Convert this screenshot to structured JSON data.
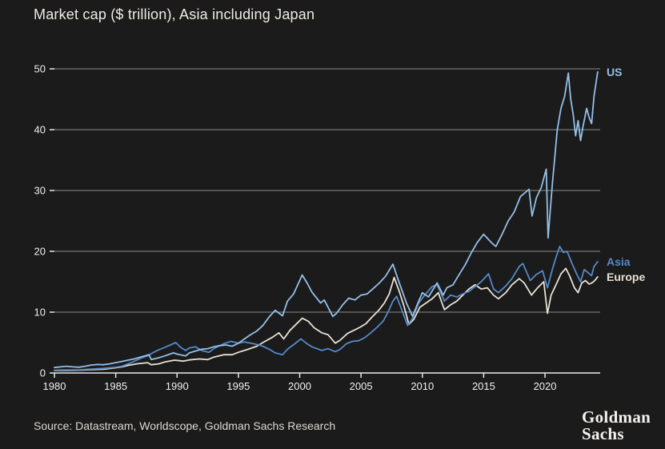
{
  "header": {
    "title": "Market cap ($ trillion), Asia including Japan"
  },
  "footer": {
    "source": "Source: Datastream, Worldscope, Goldman Sachs Research",
    "logo_line1": "Goldman",
    "logo_line2": "Sachs"
  },
  "chart_data": {
    "type": "line",
    "title": "Market cap ($ trillion), Asia including Japan",
    "xlabel": "",
    "ylabel": "Market cap ($ trillion)",
    "xlim": [
      1980,
      2024.5
    ],
    "ylim": [
      0,
      50
    ],
    "xticks": [
      1980,
      1985,
      1990,
      1995,
      2000,
      2005,
      2010,
      2015,
      2020
    ],
    "yticks": [
      0,
      10,
      20,
      30,
      40,
      50
    ],
    "grid": "horizontal",
    "legend_position": "right-end-labels",
    "background": "#1b1b1b",
    "series": [
      {
        "name": "Europe",
        "color": "#e8e1d4",
        "points": [
          [
            1980,
            0.4
          ],
          [
            1981,
            0.42
          ],
          [
            1982,
            0.45
          ],
          [
            1983,
            0.55
          ],
          [
            1984,
            0.62
          ],
          [
            1985,
            0.85
          ],
          [
            1985.5,
            1.0
          ],
          [
            1986,
            1.25
          ],
          [
            1986.7,
            1.5
          ],
          [
            1987.6,
            1.7
          ],
          [
            1987.9,
            1.35
          ],
          [
            1988.5,
            1.5
          ],
          [
            1989,
            1.8
          ],
          [
            1989.8,
            2.1
          ],
          [
            1990.5,
            1.95
          ],
          [
            1991,
            2.15
          ],
          [
            1991.8,
            2.3
          ],
          [
            1992.5,
            2.2
          ],
          [
            1993,
            2.6
          ],
          [
            1993.8,
            3.0
          ],
          [
            1994.5,
            3.0
          ],
          [
            1995,
            3.4
          ],
          [
            1995.8,
            3.9
          ],
          [
            1996.5,
            4.4
          ],
          [
            1997,
            5.0
          ],
          [
            1997.8,
            5.9
          ],
          [
            1998.3,
            6.6
          ],
          [
            1998.7,
            5.6
          ],
          [
            1999.2,
            7.0
          ],
          [
            1999.8,
            8.2
          ],
          [
            2000.2,
            9.0
          ],
          [
            2000.7,
            8.5
          ],
          [
            2001.2,
            7.4
          ],
          [
            2001.8,
            6.6
          ],
          [
            2002.3,
            6.3
          ],
          [
            2002.9,
            4.9
          ],
          [
            2003.3,
            5.4
          ],
          [
            2003.9,
            6.5
          ],
          [
            2004.4,
            7.0
          ],
          [
            2004.9,
            7.5
          ],
          [
            2005.4,
            8.1
          ],
          [
            2005.9,
            9.2
          ],
          [
            2006.4,
            10.2
          ],
          [
            2006.9,
            11.5
          ],
          [
            2007.3,
            13.0
          ],
          [
            2007.7,
            15.7
          ],
          [
            2008.1,
            13.5
          ],
          [
            2008.5,
            11.0
          ],
          [
            2008.9,
            8.0
          ],
          [
            2009.3,
            8.8
          ],
          [
            2009.8,
            10.8
          ],
          [
            2010.3,
            11.5
          ],
          [
            2010.8,
            12.2
          ],
          [
            2011.3,
            13.2
          ],
          [
            2011.8,
            10.4
          ],
          [
            2012.3,
            11.2
          ],
          [
            2012.8,
            11.8
          ],
          [
            2013.3,
            12.8
          ],
          [
            2013.8,
            13.8
          ],
          [
            2014.3,
            14.5
          ],
          [
            2014.8,
            13.8
          ],
          [
            2015.3,
            14.0
          ],
          [
            2015.8,
            12.8
          ],
          [
            2016.2,
            12.2
          ],
          [
            2016.8,
            13.2
          ],
          [
            2017.3,
            14.5
          ],
          [
            2017.9,
            15.5
          ],
          [
            2018.3,
            14.8
          ],
          [
            2018.9,
            12.8
          ],
          [
            2019.4,
            14.0
          ],
          [
            2019.9,
            15.0
          ],
          [
            2020.2,
            9.8
          ],
          [
            2020.5,
            12.8
          ],
          [
            2020.9,
            14.5
          ],
          [
            2021.3,
            16.3
          ],
          [
            2021.7,
            17.2
          ],
          [
            2022.0,
            16.0
          ],
          [
            2022.4,
            14.0
          ],
          [
            2022.7,
            13.2
          ],
          [
            2023.0,
            14.8
          ],
          [
            2023.3,
            15.2
          ],
          [
            2023.6,
            14.6
          ],
          [
            2023.9,
            14.9
          ],
          [
            2024.1,
            15.3
          ],
          [
            2024.3,
            15.8
          ]
        ]
      },
      {
        "name": "Asia",
        "color": "#5589c8",
        "points": [
          [
            1980,
            0.45
          ],
          [
            1981,
            0.5
          ],
          [
            1982,
            0.5
          ],
          [
            1983,
            0.65
          ],
          [
            1984,
            0.75
          ],
          [
            1985,
            0.95
          ],
          [
            1985.5,
            1.1
          ],
          [
            1986,
            1.5
          ],
          [
            1986.5,
            1.9
          ],
          [
            1987,
            2.4
          ],
          [
            1987.7,
            2.9
          ],
          [
            1988,
            3.3
          ],
          [
            1988.5,
            3.8
          ],
          [
            1989,
            4.2
          ],
          [
            1989.9,
            5.0
          ],
          [
            1990.3,
            4.2
          ],
          [
            1990.7,
            3.7
          ],
          [
            1991,
            4.1
          ],
          [
            1991.5,
            4.3
          ],
          [
            1992,
            3.7
          ],
          [
            1992.6,
            3.4
          ],
          [
            1993,
            4.0
          ],
          [
            1993.8,
            4.8
          ],
          [
            1994.4,
            5.2
          ],
          [
            1995,
            4.9
          ],
          [
            1995.5,
            5.1
          ],
          [
            1996,
            4.9
          ],
          [
            1996.7,
            4.6
          ],
          [
            1997,
            4.4
          ],
          [
            1997.6,
            3.8
          ],
          [
            1998,
            3.3
          ],
          [
            1998.6,
            3.0
          ],
          [
            1999,
            3.9
          ],
          [
            1999.6,
            4.8
          ],
          [
            2000.1,
            5.6
          ],
          [
            2000.6,
            4.8
          ],
          [
            2001,
            4.3
          ],
          [
            2001.8,
            3.7
          ],
          [
            2002.3,
            4.0
          ],
          [
            2002.9,
            3.5
          ],
          [
            2003.3,
            3.9
          ],
          [
            2003.8,
            4.8
          ],
          [
            2004.3,
            5.2
          ],
          [
            2004.8,
            5.3
          ],
          [
            2005.3,
            5.8
          ],
          [
            2005.8,
            6.6
          ],
          [
            2006.3,
            7.5
          ],
          [
            2006.8,
            8.5
          ],
          [
            2007.2,
            10.0
          ],
          [
            2007.6,
            11.8
          ],
          [
            2007.9,
            12.6
          ],
          [
            2008.3,
            10.5
          ],
          [
            2008.8,
            7.8
          ],
          [
            2009.2,
            9.0
          ],
          [
            2009.7,
            11.5
          ],
          [
            2010.2,
            12.8
          ],
          [
            2010.8,
            14.2
          ],
          [
            2011.2,
            14.5
          ],
          [
            2011.8,
            11.8
          ],
          [
            2012.3,
            12.8
          ],
          [
            2012.8,
            12.5
          ],
          [
            2013.3,
            13.0
          ],
          [
            2013.8,
            13.4
          ],
          [
            2014.3,
            14.2
          ],
          [
            2014.8,
            15.0
          ],
          [
            2015.4,
            16.3
          ],
          [
            2015.8,
            13.8
          ],
          [
            2016.2,
            13.2
          ],
          [
            2016.8,
            14.3
          ],
          [
            2017.3,
            15.5
          ],
          [
            2017.9,
            17.5
          ],
          [
            2018.2,
            18.0
          ],
          [
            2018.8,
            15.2
          ],
          [
            2019.3,
            16.2
          ],
          [
            2019.8,
            16.8
          ],
          [
            2020.2,
            14.0
          ],
          [
            2020.6,
            17.0
          ],
          [
            2020.9,
            19.0
          ],
          [
            2021.2,
            20.8
          ],
          [
            2021.5,
            19.8
          ],
          [
            2021.8,
            20.0
          ],
          [
            2022.2,
            18.0
          ],
          [
            2022.6,
            16.2
          ],
          [
            2022.9,
            15.0
          ],
          [
            2023.2,
            17.0
          ],
          [
            2023.5,
            16.5
          ],
          [
            2023.8,
            16.0
          ],
          [
            2024,
            17.5
          ],
          [
            2024.3,
            18.3
          ]
        ]
      },
      {
        "name": "US",
        "color": "#93bfe8",
        "points": [
          [
            1980,
            0.9
          ],
          [
            1980.5,
            1.0
          ],
          [
            1981,
            1.1
          ],
          [
            1981.5,
            1.0
          ],
          [
            1982,
            0.95
          ],
          [
            1982.5,
            1.1
          ],
          [
            1983,
            1.3
          ],
          [
            1983.5,
            1.4
          ],
          [
            1984,
            1.35
          ],
          [
            1984.5,
            1.5
          ],
          [
            1985,
            1.7
          ],
          [
            1985.5,
            1.9
          ],
          [
            1986,
            2.1
          ],
          [
            1986.5,
            2.3
          ],
          [
            1987,
            2.6
          ],
          [
            1987.7,
            3.0
          ],
          [
            1987.9,
            2.2
          ],
          [
            1988.5,
            2.5
          ],
          [
            1989,
            2.8
          ],
          [
            1989.7,
            3.3
          ],
          [
            1990,
            3.1
          ],
          [
            1990.7,
            2.8
          ],
          [
            1991,
            3.3
          ],
          [
            1991.5,
            3.6
          ],
          [
            1992,
            3.9
          ],
          [
            1992.5,
            4.0
          ],
          [
            1993,
            4.3
          ],
          [
            1993.5,
            4.5
          ],
          [
            1994,
            4.6
          ],
          [
            1994.5,
            4.4
          ],
          [
            1995,
            4.9
          ],
          [
            1995.5,
            5.6
          ],
          [
            1996,
            6.3
          ],
          [
            1996.5,
            6.9
          ],
          [
            1997,
            7.8
          ],
          [
            1997.5,
            9.2
          ],
          [
            1998,
            10.3
          ],
          [
            1998.6,
            9.4
          ],
          [
            1999,
            11.8
          ],
          [
            1999.5,
            13.0
          ],
          [
            2000,
            15.2
          ],
          [
            2000.2,
            16.1
          ],
          [
            2000.6,
            14.8
          ],
          [
            2001,
            13.3
          ],
          [
            2001.7,
            11.5
          ],
          [
            2002,
            12.0
          ],
          [
            2002.7,
            9.3
          ],
          [
            2003,
            9.8
          ],
          [
            2003.5,
            11.2
          ],
          [
            2004,
            12.3
          ],
          [
            2004.5,
            12.0
          ],
          [
            2005,
            12.8
          ],
          [
            2005.5,
            13.0
          ],
          [
            2006,
            13.9
          ],
          [
            2006.5,
            14.8
          ],
          [
            2007,
            15.9
          ],
          [
            2007.6,
            17.9
          ],
          [
            2008,
            15.5
          ],
          [
            2008.7,
            11.5
          ],
          [
            2009.2,
            9.3
          ],
          [
            2009.7,
            11.8
          ],
          [
            2010,
            13.2
          ],
          [
            2010.5,
            12.5
          ],
          [
            2011.2,
            14.8
          ],
          [
            2011.7,
            12.8
          ],
          [
            2012,
            14.0
          ],
          [
            2012.5,
            14.5
          ],
          [
            2013,
            16.2
          ],
          [
            2013.5,
            17.8
          ],
          [
            2014,
            19.8
          ],
          [
            2014.5,
            21.5
          ],
          [
            2015,
            22.8
          ],
          [
            2015.7,
            21.3
          ],
          [
            2016,
            20.8
          ],
          [
            2016.5,
            22.8
          ],
          [
            2017,
            25.0
          ],
          [
            2017.5,
            26.5
          ],
          [
            2018,
            29.0
          ],
          [
            2018.7,
            30.2
          ],
          [
            2018.95,
            25.8
          ],
          [
            2019.3,
            28.8
          ],
          [
            2019.7,
            30.5
          ],
          [
            2020.1,
            33.5
          ],
          [
            2020.25,
            22.2
          ],
          [
            2020.6,
            31.0
          ],
          [
            2021,
            40.0
          ],
          [
            2021.3,
            43.5
          ],
          [
            2021.6,
            45.5
          ],
          [
            2021.9,
            49.3
          ],
          [
            2022.1,
            45.0
          ],
          [
            2022.3,
            42.5
          ],
          [
            2022.5,
            39.0
          ],
          [
            2022.7,
            41.5
          ],
          [
            2022.9,
            38.2
          ],
          [
            2023.1,
            40.5
          ],
          [
            2023.4,
            43.5
          ],
          [
            2023.6,
            42.0
          ],
          [
            2023.8,
            41.0
          ],
          [
            2024,
            45.5
          ],
          [
            2024.3,
            49.5
          ]
        ]
      }
    ]
  }
}
